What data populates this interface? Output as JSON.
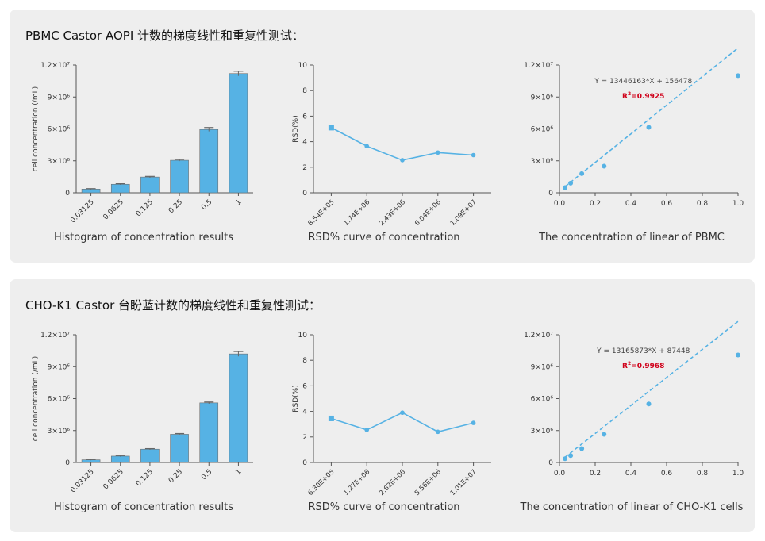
{
  "panels": [
    {
      "title": "PBMC Castor AOPI  计数的梯度线性和重复性测试：",
      "charts": {
        "histogram": {
          "type": "bar",
          "categories": [
            "0.03125",
            "0.0625",
            "0.125",
            "0.25",
            "0.5",
            "1"
          ],
          "values": [
            350000,
            800000,
            1480000,
            3050000,
            5950000,
            11200000
          ],
          "errors": [
            40000,
            50000,
            60000,
            80000,
            180000,
            220000
          ],
          "ylabel": "cell concentration (/mL)",
          "ylim": [
            0,
            12000000
          ],
          "yticks": [
            "0",
            "3×10⁶",
            "6×10⁶",
            "9×10⁶",
            "1.2×10⁷"
          ],
          "caption": "Histogram of concentration results",
          "color": "#56b2e4"
        },
        "rsd": {
          "type": "line",
          "categories": [
            "8.54E+05",
            "1.74E+06",
            "2.43E+06",
            "6.04E+06",
            "1.09E+07"
          ],
          "values": [
            5.1,
            3.65,
            2.55,
            3.15,
            2.95
          ],
          "ylabel": "RSD(%)",
          "ylim": [
            0,
            10
          ],
          "yticks": [
            "0",
            "2",
            "4",
            "6",
            "8",
            "10"
          ],
          "caption": "RSD% curve of concentration",
          "color": "#56b2e4"
        },
        "linear": {
          "type": "scatter",
          "x": [
            0.03125,
            0.0625,
            0.125,
            0.25,
            0.5,
            1
          ],
          "y": [
            480000,
            900000,
            1800000,
            2500000,
            6150000,
            11000000
          ],
          "fit": {
            "slope": 13446163,
            "intercept": 156478
          },
          "equation": "Y = 13446163*X + 156478",
          "r2_prefix": "R",
          "r2_sup": "2",
          "r2_value": "=0.9925",
          "xlim": [
            0,
            1
          ],
          "ylim": [
            0,
            12000000
          ],
          "xticks": [
            "0.0",
            "0.2",
            "0.4",
            "0.6",
            "0.8",
            "1.0"
          ],
          "yticks": [
            "0",
            "3×10⁶",
            "6×10⁶",
            "9×10⁶",
            "1.2×10⁷"
          ],
          "caption": "The concentration of linear of PBMC",
          "color": "#56b2e4",
          "r2_color": "#d0021b"
        }
      }
    },
    {
      "title": "CHO-K1 Castor  台盼蓝计数的梯度线性和重复性测试：",
      "charts": {
        "histogram": {
          "type": "bar",
          "categories": [
            "0.03125",
            "0.0625",
            "0.125",
            "0.25",
            "0.5",
            "1"
          ],
          "values": [
            250000,
            600000,
            1250000,
            2650000,
            5600000,
            10200000
          ],
          "errors": [
            40000,
            50000,
            50000,
            70000,
            80000,
            230000
          ],
          "ylabel": "cell concentration (/mL)",
          "ylim": [
            0,
            12000000
          ],
          "yticks": [
            "0",
            "3×10⁶",
            "6×10⁶",
            "9×10⁶",
            "1.2×10⁷"
          ],
          "caption": "Histogram of concentration results",
          "color": "#56b2e4"
        },
        "rsd": {
          "type": "line",
          "categories": [
            "6.30E+05",
            "1.27E+06",
            "2.62E+06",
            "5.56E+06",
            "1.01E+07"
          ],
          "values": [
            3.45,
            2.55,
            3.9,
            2.4,
            3.1
          ],
          "ylabel": "RSD(%)",
          "ylim": [
            0,
            10
          ],
          "yticks": [
            "0",
            "2",
            "4",
            "6",
            "8",
            "10"
          ],
          "caption": "RSD% curve of concentration",
          "color": "#56b2e4"
        },
        "linear": {
          "type": "scatter",
          "x": [
            0.03125,
            0.0625,
            0.125,
            0.25,
            0.5,
            1
          ],
          "y": [
            350000,
            650000,
            1300000,
            2650000,
            5500000,
            10100000
          ],
          "fit": {
            "slope": 13165873,
            "intercept": 87448
          },
          "equation": "Y = 13165873*X + 87448",
          "r2_prefix": "R",
          "r2_sup": "2",
          "r2_value": "=0.9968",
          "xlim": [
            0,
            1
          ],
          "ylim": [
            0,
            12000000
          ],
          "xticks": [
            "0.0",
            "0.2",
            "0.4",
            "0.6",
            "0.8",
            "1.0"
          ],
          "yticks": [
            "0",
            "3×10⁶",
            "6×10⁶",
            "9×10⁶",
            "1.2×10⁷"
          ],
          "caption": "The concentration of linear of CHO-K1 cells",
          "color": "#56b2e4",
          "r2_color": "#d0021b"
        }
      }
    }
  ]
}
